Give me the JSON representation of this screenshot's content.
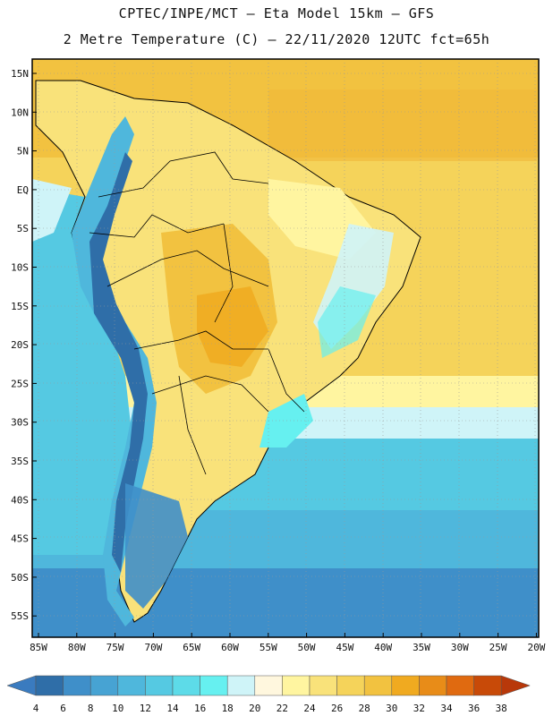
{
  "header": {
    "line1": "CPTEC/INPE/MCT –  Eta Model 15km – GFS",
    "line2": "2 Metre Temperature (C) – 22/11/2020 12UTC fct=65h"
  },
  "map": {
    "lat_labels": [
      "15N",
      "10N",
      "5N",
      "EQ",
      "5S",
      "10S",
      "15S",
      "20S",
      "25S",
      "30S",
      "35S",
      "40S",
      "45S",
      "50S",
      "55S"
    ],
    "lon_labels": [
      "85W",
      "80W",
      "75W",
      "70W",
      "65W",
      "60W",
      "55W",
      "50W",
      "45W",
      "40W",
      "35W",
      "30W",
      "25W",
      "20W"
    ],
    "gridlines": true
  },
  "colorbar": {
    "labels": [
      "4",
      "6",
      "8",
      "10",
      "12",
      "14",
      "16",
      "18",
      "20",
      "22",
      "24",
      "26",
      "28",
      "30",
      "32",
      "34",
      "36",
      "38"
    ],
    "colors": [
      "#3a7bbf",
      "#2f6ea8",
      "#3f8fc9",
      "#47a3d3",
      "#4fb7dc",
      "#55c9e2",
      "#5ddbe8",
      "#66f0f0",
      "#cff4f8",
      "#fff7de",
      "#fff5a0",
      "#f9e27a",
      "#f5d35a",
      "#f2c240",
      "#f0aa20",
      "#e88c18",
      "#e06a10",
      "#c84a08",
      "#b8380a"
    ]
  }
}
